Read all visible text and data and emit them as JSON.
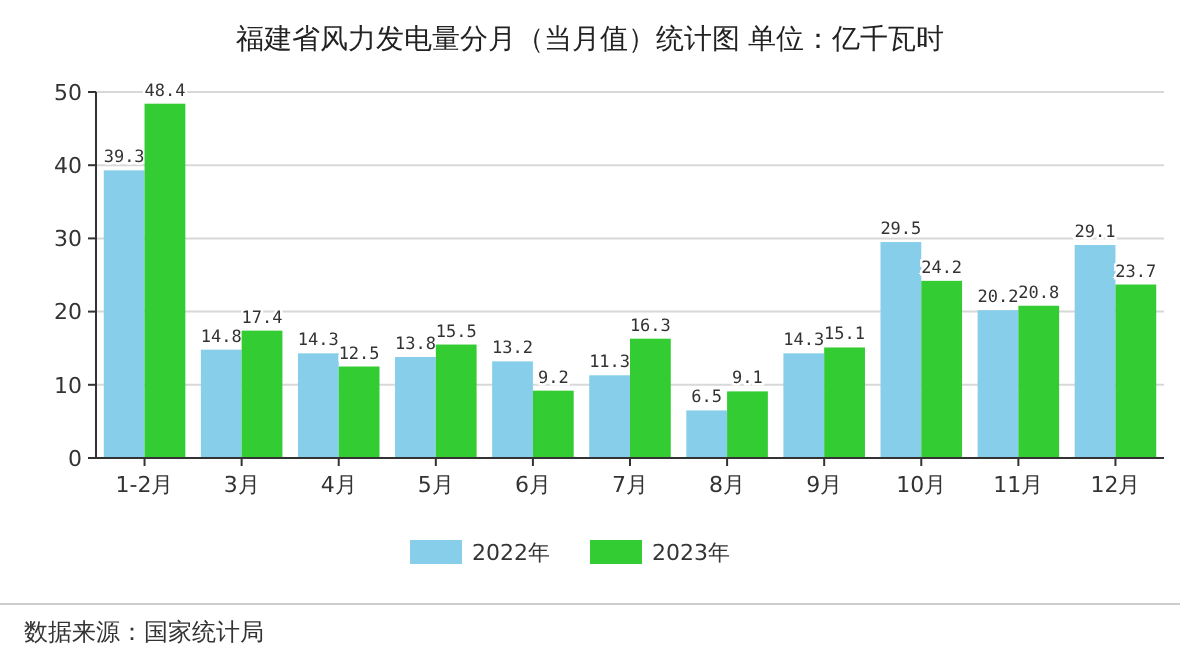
{
  "chart_data": {
    "type": "bar",
    "title": "福建省风力发电量分月（当月值）统计图 单位：亿千瓦时",
    "categories": [
      "1-2月",
      "3月",
      "4月",
      "5月",
      "6月",
      "7月",
      "8月",
      "9月",
      "10月",
      "11月",
      "12月"
    ],
    "series": [
      {
        "name": "2022年",
        "color": "#87ceeb",
        "values": [
          39.3,
          14.8,
          14.3,
          13.8,
          13.2,
          11.3,
          6.5,
          14.3,
          29.5,
          20.2,
          29.1
        ]
      },
      {
        "name": "2023年",
        "color": "#33cc33",
        "values": [
          48.4,
          17.4,
          12.5,
          15.5,
          9.2,
          16.3,
          9.1,
          15.1,
          24.2,
          20.8,
          23.7
        ]
      }
    ],
    "ylim": [
      0,
      50
    ],
    "yticks": [
      0,
      10,
      20,
      30,
      40,
      50
    ],
    "grid": "y",
    "legend": "bottom",
    "data_labels": true,
    "annotations": [
      "数据来源：国家统计局"
    ]
  }
}
